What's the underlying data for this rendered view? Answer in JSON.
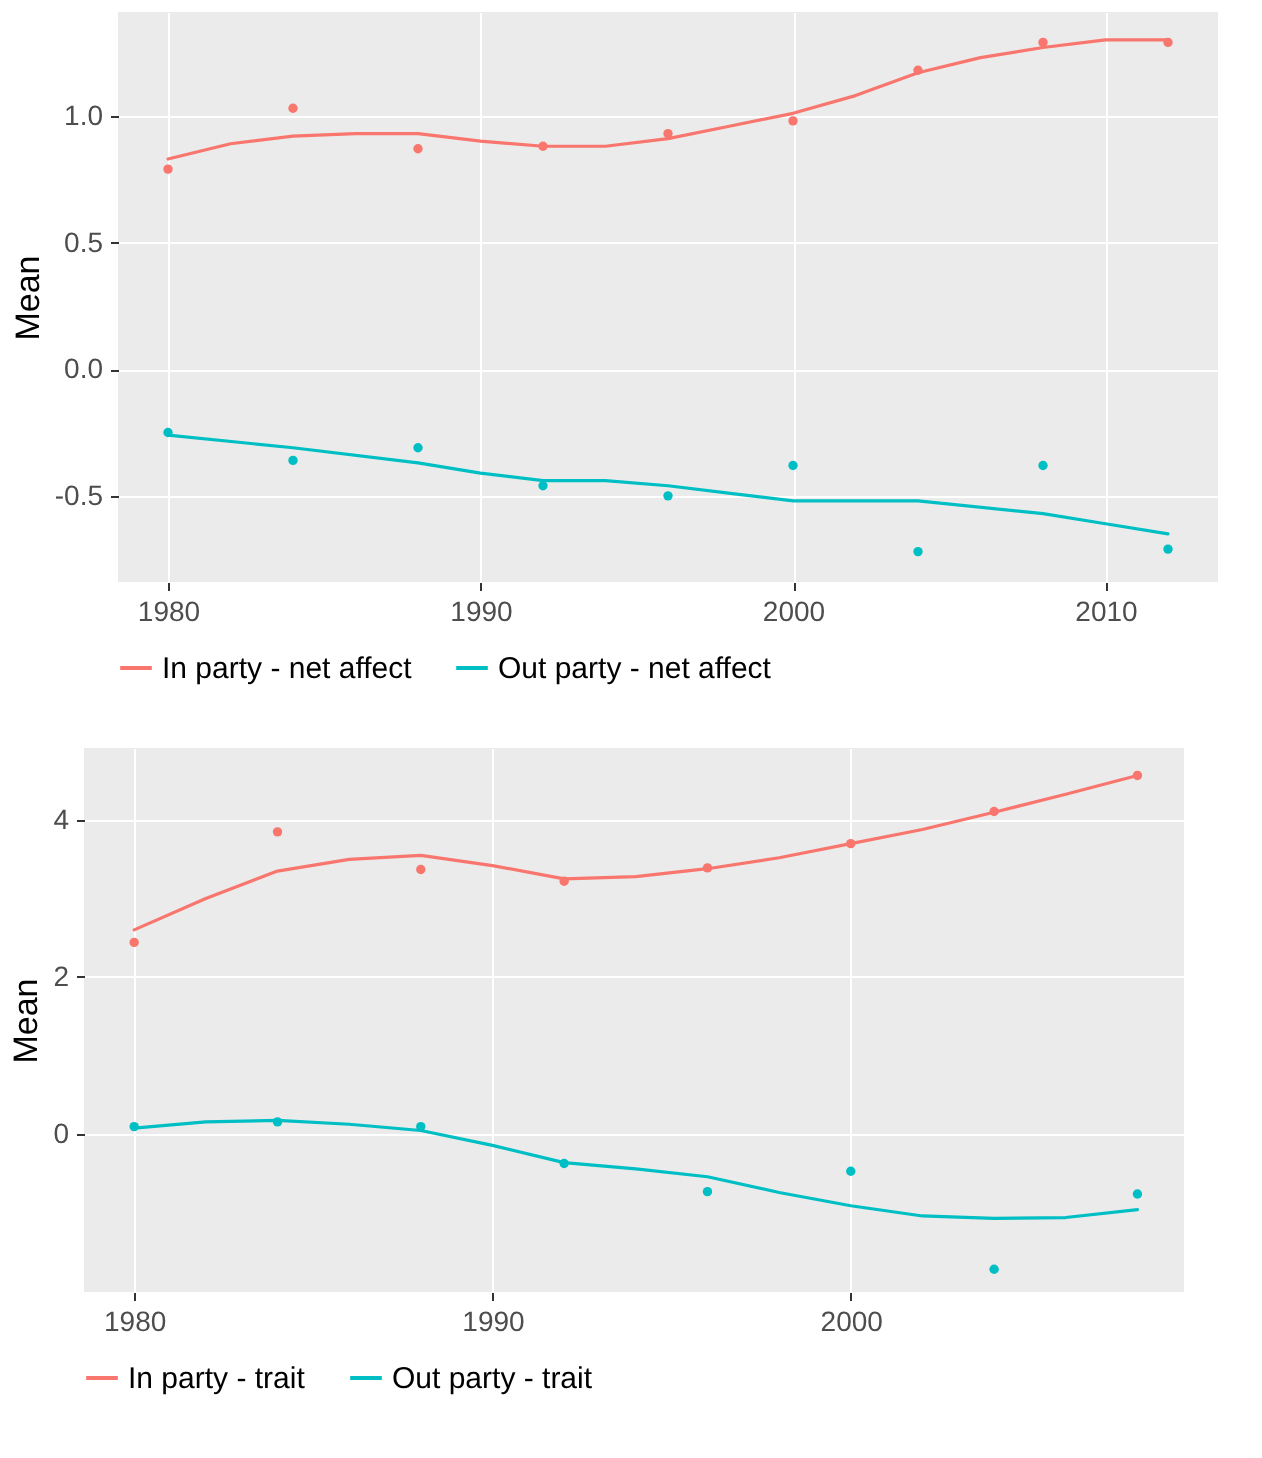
{
  "chart_data": [
    {
      "type": "line",
      "ylabel": "Mean",
      "xlim": [
        1978.4,
        2013.6
      ],
      "ylim": [
        -0.84,
        1.41
      ],
      "xticks": [
        1980,
        1990,
        2000,
        2010
      ],
      "yticks": [
        {
          "value": -0.5,
          "label": "-0.5"
        },
        {
          "value": 0,
          "label": "0.0"
        },
        {
          "value": 0.5,
          "label": "0.5"
        },
        {
          "value": 1,
          "label": "1.0"
        }
      ],
      "grid": true,
      "legend": "bottom",
      "line_style": "solid",
      "series": [
        {
          "name": "In party - net affect",
          "color": "#f8766d",
          "x": [
            1980,
            1982,
            1984,
            1986,
            1988,
            1990,
            1992,
            1994,
            1996,
            1998,
            2000,
            2002,
            2004,
            2006,
            2008,
            2010,
            2012
          ],
          "values": [
            0.83,
            0.89,
            0.92,
            0.93,
            0.93,
            0.9,
            0.88,
            0.88,
            0.91,
            0.96,
            1.01,
            1.08,
            1.17,
            1.23,
            1.27,
            1.3,
            1.3
          ]
        },
        {
          "name": "Out party - net affect",
          "color": "#00bfc4",
          "x": [
            1980,
            1984,
            1988,
            1990,
            1992,
            1994,
            1996,
            1998,
            2000,
            2004,
            2008,
            2010,
            2012
          ],
          "values": [
            -0.26,
            -0.31,
            -0.37,
            -0.41,
            -0.44,
            -0.44,
            -0.46,
            -0.49,
            -0.52,
            -0.52,
            -0.57,
            -0.61,
            -0.65
          ]
        },
        {
          "type": "scatter",
          "marker": "circle",
          "color": "#f8766d",
          "x": [
            1980,
            1984,
            1988,
            1992,
            1996,
            2000,
            2004,
            2008,
            2012
          ],
          "values": [
            0.79,
            1.03,
            0.87,
            0.88,
            0.93,
            0.98,
            1.18,
            1.29,
            1.29
          ]
        },
        {
          "type": "scatter",
          "marker": "circle",
          "color": "#00bfc4",
          "x": [
            1980,
            1984,
            1988,
            1992,
            1996,
            2000,
            2004,
            2008,
            2012
          ],
          "values": [
            -0.25,
            -0.36,
            -0.31,
            -0.46,
            -0.5,
            -0.38,
            -0.72,
            -0.38,
            -0.71
          ]
        }
      ]
    },
    {
      "type": "line",
      "ylabel": "Mean",
      "xlim": [
        1978.6,
        2009.3
      ],
      "ylim": [
        -2.02,
        4.92
      ],
      "xticks": [
        1980,
        1990,
        2000
      ],
      "yticks": [
        0,
        2,
        4
      ],
      "grid": true,
      "legend": "bottom",
      "line_style": "solid",
      "series": [
        {
          "name": "In party - trait",
          "color": "#f8766d",
          "x": [
            1980,
            1982,
            1984,
            1986,
            1988,
            1990,
            1992,
            1994,
            1996,
            1998,
            2000,
            2002,
            2004,
            2006,
            2008
          ],
          "values": [
            2.6,
            3.0,
            3.35,
            3.5,
            3.55,
            3.42,
            3.25,
            3.28,
            3.38,
            3.52,
            3.7,
            3.88,
            4.1,
            4.33,
            4.57
          ]
        },
        {
          "name": "Out party - trait",
          "color": "#00bfc4",
          "x": [
            1980,
            1982,
            1984,
            1986,
            1988,
            1990,
            1992,
            1994,
            1996,
            1998,
            2000,
            2002,
            2004,
            2006,
            2008
          ],
          "values": [
            0.07,
            0.15,
            0.17,
            0.12,
            0.04,
            -0.15,
            -0.37,
            -0.45,
            -0.55,
            -0.75,
            -0.92,
            -1.05,
            -1.08,
            -1.07,
            -0.97
          ]
        },
        {
          "type": "scatter",
          "marker": "circle",
          "color": "#f8766d",
          "x": [
            1980,
            1984,
            1988,
            1992,
            1996,
            2000,
            2004,
            2008
          ],
          "values": [
            2.44,
            3.85,
            3.37,
            3.22,
            3.39,
            3.7,
            4.11,
            4.57
          ]
        },
        {
          "type": "scatter",
          "marker": "circle",
          "color": "#00bfc4",
          "x": [
            1980,
            1984,
            1988,
            1992,
            1996,
            2000,
            2004,
            2008
          ],
          "values": [
            0.09,
            0.15,
            0.09,
            -0.38,
            -0.74,
            -0.48,
            -1.73,
            -0.77
          ]
        }
      ]
    }
  ]
}
